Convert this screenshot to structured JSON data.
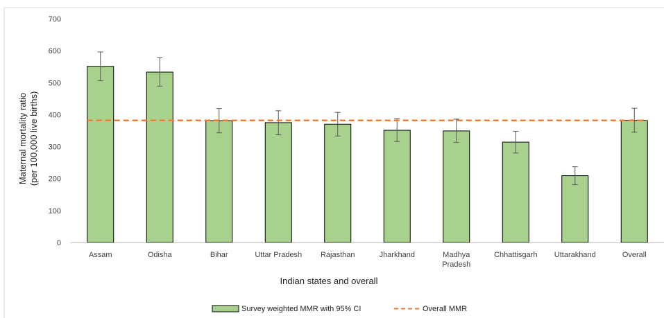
{
  "chart_data": {
    "type": "bar",
    "title": "",
    "xlabel": "Indian states and overall",
    "ylabel_lines": [
      "Maternal mortality ratio",
      "(per 100,000 live births)"
    ],
    "ylim": [
      0,
      700
    ],
    "yticks": [
      0,
      100,
      200,
      300,
      400,
      500,
      600,
      700
    ],
    "grid": false,
    "legend_position": "bottom",
    "categories": [
      [
        "Assam"
      ],
      [
        "Odisha"
      ],
      [
        "Bihar"
      ],
      [
        "Uttar Pradesh"
      ],
      [
        "Rajasthan"
      ],
      [
        "Jharkhand"
      ],
      [
        "Madhya",
        "Pradesh"
      ],
      [
        "Chhattisgarh"
      ],
      [
        "Uttarakhand"
      ],
      [
        "Overall"
      ]
    ],
    "series": [
      {
        "name": "Survey weighted MMR with 95% CI",
        "kind": "bar",
        "color": "#a9d18e",
        "edge_color": "#000000",
        "values": [
          551,
          533,
          381,
          375,
          370,
          351,
          349,
          314,
          209,
          382
        ],
        "ci_low": [
          506,
          489,
          343,
          337,
          333,
          316,
          313,
          280,
          181,
          345
        ],
        "ci_high": [
          596,
          578,
          419,
          412,
          407,
          387,
          386,
          348,
          237,
          420
        ]
      },
      {
        "name": "Overall MMR",
        "kind": "reference_line",
        "color": "#ed7d31",
        "value": 382
      }
    ]
  }
}
